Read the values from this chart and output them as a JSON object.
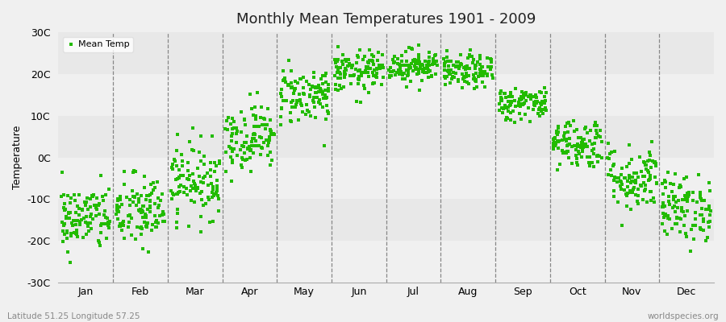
{
  "title": "Monthly Mean Temperatures 1901 - 2009",
  "ylabel": "Temperature",
  "bottom_left_label": "Latitude 51.25 Longitude 57.25",
  "bottom_right_label": "worldspecies.org",
  "legend_label": "Mean Temp",
  "marker_color": "#22bb00",
  "background_color": "#f0f0f0",
  "plot_bg_color": "#f5f5f5",
  "band_color_light": "#f0f0f0",
  "band_color_dark": "#e8e8e8",
  "ylim": [
    -30,
    30
  ],
  "yticks": [
    -30,
    -20,
    -10,
    0,
    10,
    20,
    30
  ],
  "ytick_labels": [
    "-30C",
    "-20C",
    "-10C",
    "0C",
    "10C",
    "20C",
    "30C"
  ],
  "months": [
    "Jan",
    "Feb",
    "Mar",
    "Apr",
    "May",
    "Jun",
    "Jul",
    "Aug",
    "Sep",
    "Oct",
    "Nov",
    "Dec"
  ],
  "mean_temps": [
    -14.5,
    -13.0,
    -5.5,
    5.0,
    15.0,
    20.5,
    22.0,
    20.5,
    13.0,
    3.5,
    -5.0,
    -12.0
  ],
  "std_temps": [
    4.0,
    4.5,
    4.5,
    4.0,
    3.5,
    2.5,
    2.0,
    2.0,
    2.0,
    3.0,
    4.0,
    4.0
  ],
  "n_points": 109,
  "seed": 42,
  "marker_size": 3,
  "marker": "s",
  "dpi": 100,
  "figsize": [
    9.0,
    4.0
  ]
}
